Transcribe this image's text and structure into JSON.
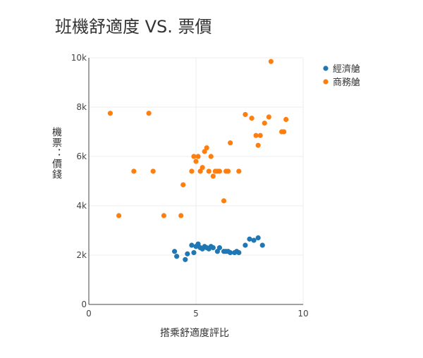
{
  "chart_data": {
    "type": "scatter",
    "title": "班機舒適度 VS. 票價",
    "xlabel": "搭乘舒適度評比",
    "ylabel": "機票：價錢",
    "xlim": [
      0,
      10
    ],
    "ylim": [
      0,
      10000
    ],
    "x_ticks": [
      0,
      5,
      10
    ],
    "y_ticks": [
      0,
      2000,
      4000,
      6000,
      8000,
      10000
    ],
    "y_tick_labels": [
      "0",
      "2k",
      "4k",
      "6k",
      "8k",
      "10k"
    ],
    "x_tick_labels": [
      "0",
      "5",
      "10"
    ],
    "grid": true,
    "legend_position": "top-right",
    "series": [
      {
        "name": "經濟艙",
        "color": "#1f77b4",
        "x": [
          4.0,
          4.1,
          4.5,
          4.6,
          4.8,
          4.9,
          5.0,
          5.1,
          5.2,
          5.3,
          5.4,
          5.5,
          5.6,
          5.7,
          5.8,
          6.0,
          6.1,
          6.3,
          6.4,
          6.5,
          6.6,
          6.8,
          6.9,
          7.0,
          7.3,
          7.5,
          7.7,
          7.9,
          8.1
        ],
        "y": [
          2150,
          1950,
          1820,
          2050,
          2400,
          2100,
          2350,
          2450,
          2300,
          2250,
          2350,
          2300,
          2250,
          2350,
          2300,
          2150,
          2300,
          2150,
          2150,
          2150,
          2100,
          2100,
          2150,
          2100,
          2400,
          2650,
          2600,
          2700,
          2400
        ]
      },
      {
        "name": "商務艙",
        "color": "#ff7f0e",
        "x": [
          1.0,
          1.4,
          2.1,
          2.8,
          3.0,
          3.5,
          4.3,
          4.4,
          4.8,
          4.9,
          5.0,
          5.1,
          5.2,
          5.3,
          5.4,
          5.5,
          5.6,
          5.7,
          5.8,
          5.9,
          6.0,
          6.1,
          6.3,
          6.4,
          6.5,
          6.6,
          7.0,
          7.3,
          7.6,
          7.8,
          7.9,
          8.0,
          8.2,
          8.4,
          8.5,
          9.0,
          9.1,
          9.2
        ],
        "y": [
          7750,
          3600,
          5400,
          7750,
          5400,
          3600,
          3600,
          4850,
          5400,
          6000,
          5800,
          6000,
          5400,
          5550,
          6200,
          6350,
          5400,
          6000,
          5200,
          5400,
          5400,
          5400,
          4200,
          5400,
          5400,
          6550,
          5400,
          7700,
          7550,
          6850,
          6450,
          6850,
          7350,
          7600,
          9850,
          7000,
          7000,
          7500
        ]
      }
    ]
  }
}
